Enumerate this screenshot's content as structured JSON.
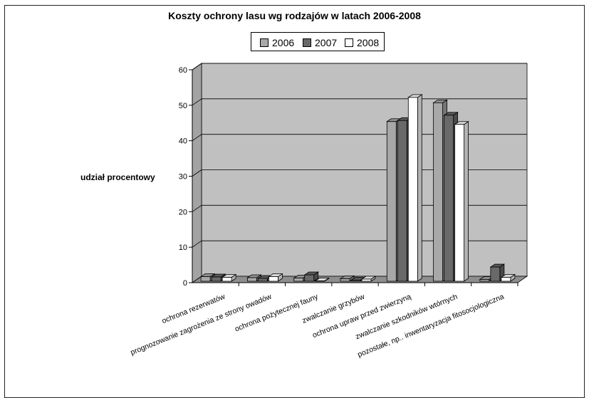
{
  "chart_data": {
    "type": "bar",
    "title": "Koszty ochrony lasu wg rodzajów w latach 2006-2008",
    "ylabel": "udział procentowy",
    "xlabel": "",
    "ylim": [
      0,
      60
    ],
    "yticks": [
      "0",
      "10",
      "20",
      "30",
      "40",
      "50",
      "60"
    ],
    "grid": true,
    "legend_position": "top-center",
    "categories": [
      "ochrona rezerwatów",
      "prognozowanie  zagrożenia  ze strony owadów",
      "ochrona pożytecznej fauny",
      "zwalczanie grzybów",
      "ochrona upraw  przed zwierzyną",
      "zwalczanie szkodników wtórnych",
      "pozostałe, np.. inwentaryzacja  fitosocjologiczna"
    ],
    "series": [
      {
        "name": "2006",
        "color": "#a8a8a8",
        "values": [
          1.3,
          1.0,
          0.9,
          0.7,
          45.0,
          50.3,
          0.5
        ]
      },
      {
        "name": "2007",
        "color": "#696969",
        "values": [
          1.2,
          0.8,
          1.8,
          0.3,
          45.3,
          46.8,
          4.0
        ]
      },
      {
        "name": "2008",
        "color": "#ffffff",
        "values": [
          1.1,
          1.3,
          0.1,
          0.6,
          51.8,
          44.2,
          1.1
        ]
      }
    ],
    "wall_color": "#c0c0c0",
    "floor_color": "#8e8e8e"
  }
}
